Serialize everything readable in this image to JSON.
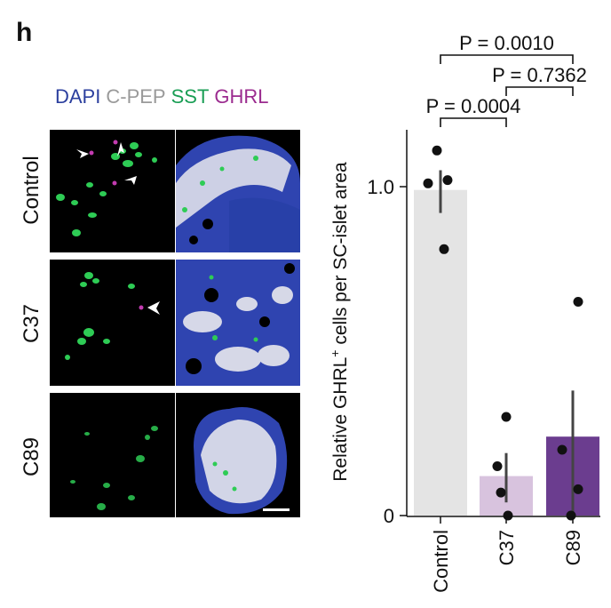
{
  "panel_letter": "h",
  "legend": [
    {
      "label": "DAPI",
      "color": "#2b3f9e"
    },
    {
      "label": "C-PEP",
      "color": "#9a9a9a"
    },
    {
      "label": "SST",
      "color": "#1a9e55"
    },
    {
      "label": "GHRL",
      "color": "#9b2b8f"
    }
  ],
  "rows": [
    "Control",
    "C37",
    "C89"
  ],
  "colors": {
    "control_bar": "#e4e4e4",
    "c37_bar": "#d8c3de",
    "c89_bar": "#6b3d8f",
    "dapi": "#3346b8",
    "cpep": "#f2f2f2",
    "sst": "#2ecc55",
    "ghrl": "#c23bb0"
  },
  "chart_data": {
    "type": "bar",
    "categories": [
      "Control",
      "C37",
      "C89"
    ],
    "values": [
      0.99,
      0.12,
      0.24
    ],
    "error": [
      [
        0.92,
        1.05
      ],
      [
        0.04,
        0.19
      ],
      [
        0.0,
        0.38
      ]
    ],
    "points": [
      [
        1.11,
        1.01,
        1.02,
        0.81
      ],
      [
        0.3,
        0.15,
        0.07,
        0.0
      ],
      [
        0.2,
        0.65,
        0.08,
        0.0
      ]
    ],
    "ylabel_main": "Relative GHRL",
    "ylabel_sup": "+",
    "ylabel_rest": " cells per SC-islet area",
    "yticks": [
      "0",
      "1.0"
    ],
    "ytick_values": [
      0,
      1.0
    ],
    "ylim": [
      0,
      1.15
    ],
    "brackets": [
      {
        "from": 0,
        "to": 2,
        "label": "P = 0.0010"
      },
      {
        "from": 1,
        "to": 2,
        "label": "P = 0.7362"
      },
      {
        "from": 0,
        "to": 1,
        "label": "P = 0.0004"
      }
    ]
  }
}
